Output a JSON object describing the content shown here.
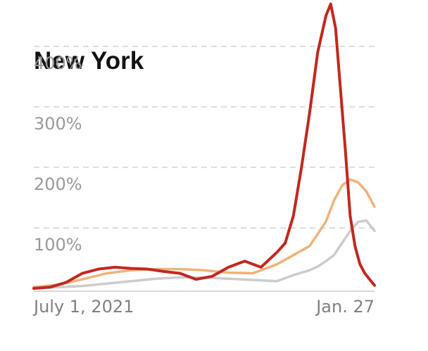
{
  "chart_data": {
    "type": "line",
    "title": "New York",
    "xlabel": "",
    "ylabel": "",
    "x_tick_labels": [
      "July 1, 2021",
      "Jan. 27"
    ],
    "y_ticks": [
      {
        "value": 100,
        "label": "100%"
      },
      {
        "value": 200,
        "label": "200%"
      },
      {
        "value": 300,
        "label": "300%"
      },
      {
        "value": 400,
        "label": "400%"
      }
    ],
    "xlim": [
      0,
      210
    ],
    "ylim": [
      0,
      430
    ],
    "grid": true,
    "series": [
      {
        "color": "#c0281f",
        "x": [
          0,
          10,
          20,
          30,
          40,
          50,
          60,
          70,
          80,
          90,
          100,
          110,
          120,
          130,
          140,
          150,
          155,
          160,
          165,
          170,
          175,
          180,
          183,
          186,
          189,
          192,
          195,
          198,
          201,
          204,
          207,
          210
        ],
        "y": [
          0,
          2,
          10,
          25,
          32,
          35,
          33,
          32,
          28,
          25,
          15,
          20,
          35,
          45,
          35,
          60,
          75,
          120,
          200,
          290,
          390,
          450,
          470,
          430,
          330,
          230,
          120,
          70,
          40,
          25,
          15,
          5
        ]
      },
      {
        "color": "#f0b27a",
        "x": [
          0,
          15,
          30,
          45,
          60,
          75,
          90,
          105,
          120,
          135,
          150,
          160,
          170,
          180,
          185,
          190,
          195,
          200,
          205,
          210
        ],
        "y": [
          2,
          6,
          15,
          25,
          30,
          32,
          32,
          30,
          26,
          25,
          40,
          55,
          70,
          110,
          145,
          170,
          180,
          175,
          160,
          135
        ]
      },
      {
        "color": "#cccccc",
        "x": [
          0,
          15,
          30,
          45,
          60,
          75,
          90,
          105,
          120,
          135,
          150,
          160,
          170,
          175,
          180,
          185,
          190,
          195,
          200,
          205,
          210
        ],
        "y": [
          0,
          2,
          4,
          8,
          12,
          16,
          18,
          18,
          16,
          14,
          12,
          22,
          30,
          36,
          45,
          55,
          75,
          95,
          110,
          112,
          95
        ]
      }
    ]
  }
}
